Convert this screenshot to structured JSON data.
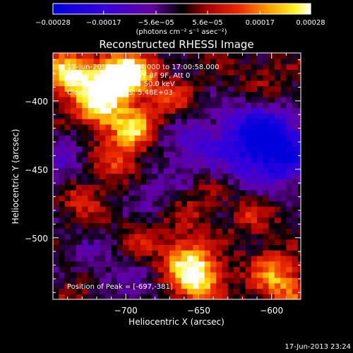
{
  "chart_data": {
    "type": "heatmap",
    "title": "Reconstructed RHESSI Image",
    "xlabel": "Heliocentric X (arcsec)",
    "ylabel": "Heliocentric Y (arcsec)",
    "xlim": [
      -750,
      -580
    ],
    "ylim": [
      -545,
      -365
    ],
    "x_ticks": [
      -700,
      -650,
      -600
    ],
    "x_tick_labels": [
      "−700",
      "−650",
      "−600"
    ],
    "y_ticks": [
      -400,
      -450,
      -500
    ],
    "y_tick_labels": [
      "−400",
      "−450",
      "−500"
    ],
    "colorbar": {
      "min": -0.00028,
      "max": 0.00028,
      "ticks": [
        -0.00028,
        -0.00017,
        -5.6e-05,
        5.6e-05,
        0.00017,
        0.00028
      ],
      "tick_labels": [
        "−0.00028",
        "−0.00017",
        "−5.6e−05",
        "5.6e−05",
        "0.00017",
        "0.00028"
      ],
      "unit_label": "(photons cm⁻² s⁻¹ asec⁻²)"
    },
    "annotations": [
      "17-Jun-2013 16:57:04.000 to 17:00:58.000",
      "Detectors: 3F 5F 6F 7F 8F 9F, Att 0",
      "Energy Range: 25.0 - 50.0 keV",
      "Clean    Tot Counts: 5.48E+03"
    ],
    "peak_label": "Position of Peak = [-697,-381]",
    "peak": {
      "x": -697,
      "y": -381
    },
    "sources": [
      {
        "x": -740,
        "y": -380,
        "value": 0.00027
      },
      {
        "x": -712,
        "y": -385,
        "value": 0.00028
      },
      {
        "x": -697,
        "y": -381,
        "value": 0.00028
      },
      {
        "x": -720,
        "y": -405,
        "value": 0.00024
      },
      {
        "x": -695,
        "y": -420,
        "value": 0.00022
      },
      {
        "x": -705,
        "y": -445,
        "value": 0.00015
      },
      {
        "x": -668,
        "y": -400,
        "value": 0.00011
      },
      {
        "x": -730,
        "y": -470,
        "value": 0.00012
      },
      {
        "x": -650,
        "y": -530,
        "value": 0.00026
      },
      {
        "x": -660,
        "y": -515,
        "value": 0.00018
      },
      {
        "x": -600,
        "y": -525,
        "value": 0.00016
      },
      {
        "x": -585,
        "y": -540,
        "value": 0.00012
      },
      {
        "x": -615,
        "y": -480,
        "value": 9e-05
      },
      {
        "x": -640,
        "y": -460,
        "value": 7e-05
      },
      {
        "x": -690,
        "y": -500,
        "value": 8e-05
      },
      {
        "x": -735,
        "y": -540,
        "value": 6e-05
      },
      {
        "x": -605,
        "y": -385,
        "value": 5e-05
      },
      {
        "x": -655,
        "y": -480,
        "value": 6e-05
      }
    ],
    "lows": [
      {
        "x": -610,
        "y": -425,
        "value": -0.00026
      },
      {
        "x": -590,
        "y": -440,
        "value": -0.0002
      },
      {
        "x": -655,
        "y": -430,
        "value": -0.00012
      },
      {
        "x": -745,
        "y": -445,
        "value": -0.0001
      },
      {
        "x": -690,
        "y": -465,
        "value": -7e-05
      },
      {
        "x": -630,
        "y": -455,
        "value": -8e-05
      },
      {
        "x": -700,
        "y": -535,
        "value": -6e-05
      },
      {
        "x": -725,
        "y": -515,
        "value": -5e-05
      }
    ]
  },
  "footer": {
    "timestamp": "17-Jun-2013 23:24"
  }
}
